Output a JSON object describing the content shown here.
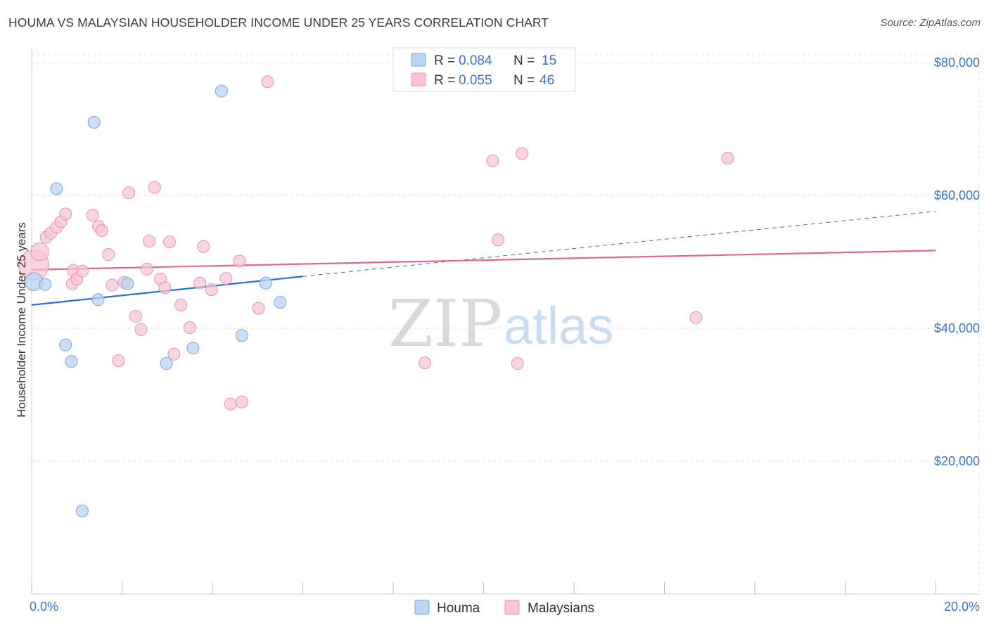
{
  "title": "HOUMA VS MALAYSIAN HOUSEHOLDER INCOME UNDER 25 YEARS CORRELATION CHART",
  "source": "Source: ZipAtlas.com",
  "watermark": {
    "zip": "ZIP",
    "atlas": "atlas"
  },
  "colors": {
    "houma_fill": "#b9d3f3",
    "houma_stroke": "#7aa5de",
    "houma_line": "#2e6ecf",
    "malaysian_fill": "#f8c3d4",
    "malaysian_stroke": "#eb91ad",
    "malaysian_line": "#e4668f",
    "tick_text": "#3b72c4",
    "grid": "#e2e2e2"
  },
  "legend": {
    "houma": {
      "r_label": "R = ",
      "r_value": "0.084",
      "n_label": "N = ",
      "n_value": "15"
    },
    "malaysian": {
      "r_label": "R = ",
      "r_value": "0.055",
      "n_label": "N = ",
      "n_value": "46"
    }
  },
  "bottom_legend": {
    "houma": "Houma",
    "malaysian": "Malaysians"
  },
  "chart_data": {
    "type": "scatter",
    "title": "HOUMA VS MALAYSIAN HOUSEHOLDER INCOME UNDER 25 YEARS CORRELATION CHART",
    "xlabel": "",
    "ylabel": "Householder Income Under 25 years",
    "xlim": [
      0,
      20
    ],
    "ylim": [
      0,
      82000
    ],
    "x_tick_labels": {
      "left": "0.0%",
      "right": "20.0%"
    },
    "y_ticks": [
      {
        "value": 20000,
        "label": "$20,000"
      },
      {
        "value": 40000,
        "label": "$40,000"
      },
      {
        "value": 60000,
        "label": "$60,000"
      },
      {
        "value": 80000,
        "label": "$80,000"
      }
    ],
    "series": [
      {
        "name": "Houma",
        "r": 0.084,
        "n": 15,
        "points": [
          [
            0.05,
            47000,
            1.5
          ],
          [
            0.3,
            46600,
            1
          ],
          [
            0.55,
            61000,
            1
          ],
          [
            0.75,
            37500,
            1
          ],
          [
            0.88,
            35000,
            1
          ],
          [
            1.12,
            12500,
            1
          ],
          [
            1.38,
            71000,
            1
          ],
          [
            1.47,
            44300,
            1
          ],
          [
            2.12,
            46700,
            1
          ],
          [
            2.98,
            34700,
            1
          ],
          [
            3.57,
            37000,
            1
          ],
          [
            4.2,
            75700,
            1
          ],
          [
            4.65,
            38900,
            1
          ],
          [
            5.18,
            46800,
            1
          ],
          [
            5.5,
            43900,
            1
          ]
        ],
        "trend": {
          "x0": 0,
          "y0": 43500,
          "x1": 6.0,
          "y1": 47800,
          "dashed_to_x": 20,
          "dashed_to_y": 57600
        }
      },
      {
        "name": "Malaysians",
        "r": 0.055,
        "n": 46,
        "points": [
          [
            0.05,
            49500,
            2.5
          ],
          [
            0.18,
            51500,
            1.5
          ],
          [
            0.32,
            53700,
            1
          ],
          [
            0.42,
            54300,
            1
          ],
          [
            0.55,
            55200,
            1
          ],
          [
            0.65,
            56000,
            1
          ],
          [
            0.75,
            57200,
            1
          ],
          [
            0.9,
            46700,
            1
          ],
          [
            0.92,
            48700,
            1
          ],
          [
            1.0,
            47400,
            1
          ],
          [
            1.12,
            48600,
            1
          ],
          [
            1.35,
            57000,
            1
          ],
          [
            1.48,
            55300,
            1
          ],
          [
            1.55,
            54700,
            1
          ],
          [
            1.7,
            51100,
            1
          ],
          [
            1.78,
            46500,
            1
          ],
          [
            1.92,
            35100,
            1
          ],
          [
            2.05,
            46900,
            1
          ],
          [
            2.15,
            60400,
            1
          ],
          [
            2.3,
            41800,
            1
          ],
          [
            2.42,
            39800,
            1
          ],
          [
            2.55,
            48900,
            1
          ],
          [
            2.6,
            53100,
            1
          ],
          [
            2.72,
            61200,
            1
          ],
          [
            2.85,
            47400,
            1
          ],
          [
            2.95,
            46100,
            1
          ],
          [
            3.05,
            53000,
            1
          ],
          [
            3.15,
            36100,
            1
          ],
          [
            3.3,
            43500,
            1
          ],
          [
            3.5,
            40100,
            1
          ],
          [
            3.72,
            46800,
            1
          ],
          [
            3.8,
            52300,
            1
          ],
          [
            3.98,
            45800,
            1
          ],
          [
            4.3,
            47500,
            1
          ],
          [
            4.4,
            28600,
            1
          ],
          [
            4.6,
            50100,
            1
          ],
          [
            4.65,
            28900,
            1
          ],
          [
            5.02,
            43000,
            1
          ],
          [
            5.22,
            77100,
            1
          ],
          [
            8.7,
            34800,
            1
          ],
          [
            10.2,
            65200,
            1
          ],
          [
            10.32,
            53300,
            1
          ],
          [
            10.75,
            34700,
            1
          ],
          [
            10.85,
            66300,
            1
          ],
          [
            15.4,
            65600,
            1
          ],
          [
            14.7,
            41600,
            1
          ]
        ],
        "trend": {
          "x0": 0,
          "y0": 48800,
          "x1": 20,
          "y1": 51700
        }
      }
    ],
    "legend_position": "top-center",
    "grid": true
  }
}
